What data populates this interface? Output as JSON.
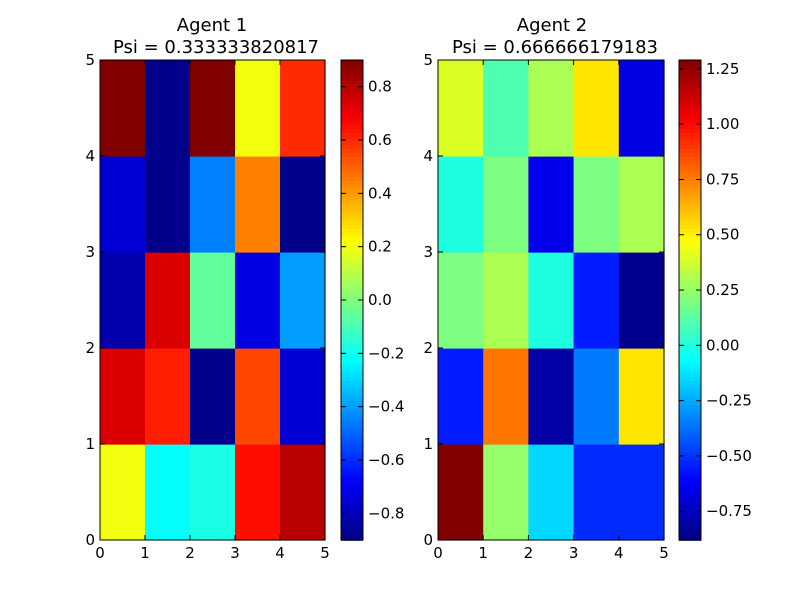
{
  "chart_data": [
    {
      "type": "heatmap",
      "title": "Agent 1",
      "subtitle": "Psi = 0.333333820817",
      "xlim": [
        0,
        5
      ],
      "ylim": [
        0,
        5
      ],
      "x_ticks": [
        "0",
        "1",
        "2",
        "3",
        "4",
        "5"
      ],
      "y_ticks": [
        "0",
        "1",
        "2",
        "3",
        "4",
        "5"
      ],
      "colormap": "jet",
      "vmin": -0.9,
      "vmax": 0.9,
      "colorbar_ticks": [
        0.8,
        0.6,
        0.4,
        0.2,
        0.0,
        -0.2,
        -0.4,
        -0.6,
        -0.8
      ],
      "colorbar_tick_labels": [
        "0.8",
        "0.6",
        "0.4",
        "0.2",
        "0.0",
        "−0.2",
        "−0.4",
        "−0.6",
        "−0.8"
      ],
      "grid": false,
      "values": [
        [
          0.2,
          -0.22,
          -0.18,
          0.65,
          0.8
        ],
        [
          0.74,
          0.62,
          -0.88,
          0.55,
          -0.75
        ],
        [
          -0.82,
          0.74,
          -0.05,
          -0.73,
          -0.4
        ],
        [
          -0.75,
          -0.88,
          -0.45,
          0.45,
          -0.88
        ],
        [
          0.9,
          -0.88,
          0.9,
          0.2,
          0.6
        ]
      ]
    },
    {
      "type": "heatmap",
      "title": "Agent 2",
      "subtitle": "Psi = 0.666666179183",
      "xlim": [
        0,
        5
      ],
      "ylim": [
        0,
        5
      ],
      "x_ticks": [
        "0",
        "1",
        "2",
        "3",
        "4",
        "5"
      ],
      "y_ticks": [
        "0",
        "1",
        "2",
        "3",
        "4",
        "5"
      ],
      "colormap": "jet",
      "vmin": -0.88,
      "vmax": 1.29,
      "colorbar_ticks": [
        1.25,
        1.0,
        0.75,
        0.5,
        0.25,
        0.0,
        -0.25,
        -0.5,
        -0.75
      ],
      "colorbar_tick_labels": [
        "1.25",
        "1.00",
        "0.75",
        "0.50",
        "0.25",
        "0.00",
        "−0.25",
        "−0.50",
        "−0.75"
      ],
      "grid": false,
      "values": [
        [
          1.29,
          0.25,
          -0.15,
          -0.52,
          -0.52
        ],
        [
          -0.55,
          0.77,
          -0.8,
          -0.35,
          0.53
        ],
        [
          0.2,
          0.3,
          0.0,
          -0.55,
          -0.85
        ],
        [
          0.0,
          0.2,
          -0.65,
          0.2,
          0.3
        ],
        [
          0.4,
          0.1,
          0.3,
          0.53,
          -0.67
        ]
      ]
    }
  ]
}
